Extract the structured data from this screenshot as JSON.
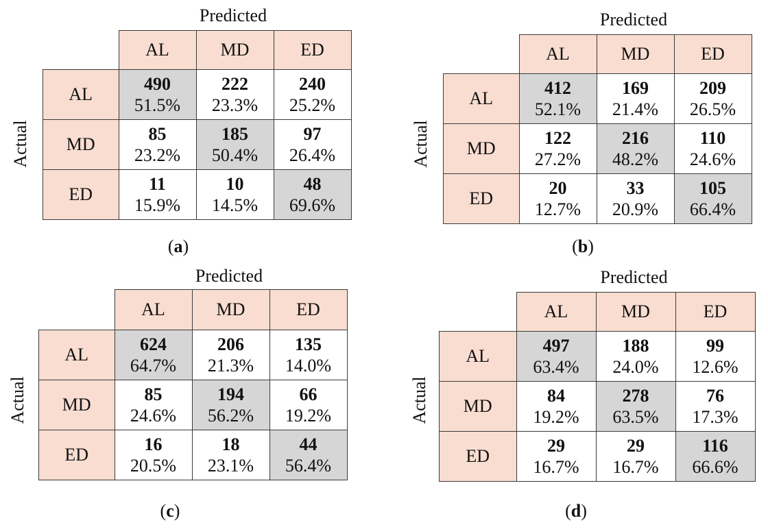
{
  "axis_labels": {
    "predicted": "Predicted",
    "actual": "Actual"
  },
  "colors": {
    "header_fill": "#f8ddd0",
    "diagonal_fill": "#d6d6d6",
    "cell_fill": "#ffffff"
  },
  "chart_data": [
    {
      "type": "table",
      "panel": "a",
      "caption": "(a)",
      "x_label": "Predicted",
      "y_label": "Actual",
      "classes": [
        "AL",
        "MD",
        "ED"
      ],
      "counts": [
        [
          490,
          222,
          240
        ],
        [
          85,
          185,
          97
        ],
        [
          11,
          10,
          48
        ]
      ],
      "percents": [
        [
          "51.5%",
          "23.3%",
          "25.2%"
        ],
        [
          "23.2%",
          "50.4%",
          "26.4%"
        ],
        [
          "15.9%",
          "14.5%",
          "69.6%"
        ]
      ]
    },
    {
      "type": "table",
      "panel": "b",
      "caption": "(b)",
      "x_label": "Predicted",
      "y_label": "Actual",
      "classes": [
        "AL",
        "MD",
        "ED"
      ],
      "counts": [
        [
          412,
          169,
          209
        ],
        [
          122,
          216,
          110
        ],
        [
          20,
          33,
          105
        ]
      ],
      "percents": [
        [
          "52.1%",
          "21.4%",
          "26.5%"
        ],
        [
          "27.2%",
          "48.2%",
          "24.6%"
        ],
        [
          "12.7%",
          "20.9%",
          "66.4%"
        ]
      ]
    },
    {
      "type": "table",
      "panel": "c",
      "caption": "(c)",
      "x_label": "Predicted",
      "y_label": "Actual",
      "classes": [
        "AL",
        "MD",
        "ED"
      ],
      "counts": [
        [
          624,
          206,
          135
        ],
        [
          85,
          194,
          66
        ],
        [
          16,
          18,
          44
        ]
      ],
      "percents": [
        [
          "64.7%",
          "21.3%",
          "14.0%"
        ],
        [
          "24.6%",
          "56.2%",
          "19.2%"
        ],
        [
          "20.5%",
          "23.1%",
          "56.4%"
        ]
      ]
    },
    {
      "type": "table",
      "panel": "d",
      "caption": "(d)",
      "x_label": "Predicted",
      "y_label": "Actual",
      "classes": [
        "AL",
        "MD",
        "ED"
      ],
      "counts": [
        [
          497,
          188,
          99
        ],
        [
          84,
          278,
          76
        ],
        [
          29,
          29,
          116
        ]
      ],
      "percents": [
        [
          "63.4%",
          "24.0%",
          "12.6%"
        ],
        [
          "19.2%",
          "63.5%",
          "17.3%"
        ],
        [
          "16.7%",
          "16.7%",
          "66.6%"
        ]
      ]
    }
  ]
}
